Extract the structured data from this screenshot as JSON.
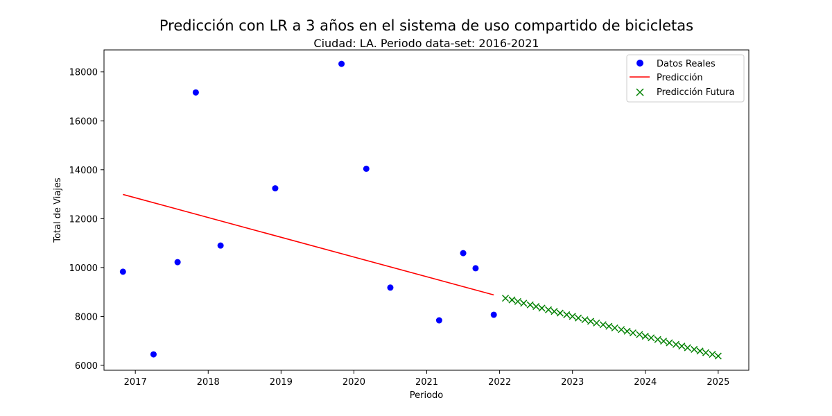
{
  "chart_data": {
    "type": "scatter",
    "title": "Predicción con LR a 3 años en el sistema de uso compartido de bicicletas",
    "subtitle": "Ciudad: LA. Periodo data-set: 2016-2021",
    "xlabel": "Periodo",
    "ylabel": "Total de Viajes",
    "xlim": [
      2016.57,
      2025.42
    ],
    "ylim": [
      5800,
      18900
    ],
    "x_ticks": [
      2017,
      2018,
      2019,
      2020,
      2021,
      2022,
      2023,
      2024,
      2025
    ],
    "y_ticks": [
      6000,
      8000,
      10000,
      12000,
      14000,
      16000,
      18000
    ],
    "grid": false,
    "legend_position": "top-right",
    "series": [
      {
        "name": "Datos Reales",
        "kind": "scatter",
        "marker": "circle",
        "color": "#0000ff",
        "x": [
          2016.83,
          2017.25,
          2017.58,
          2017.83,
          2018.17,
          2018.92,
          2019.83,
          2020.17,
          2020.5,
          2021.17,
          2021.5,
          2021.67,
          2021.92
        ],
        "y": [
          9830,
          6450,
          10220,
          17160,
          10900,
          13240,
          18330,
          14040,
          9180,
          7840,
          10590,
          9970,
          8070
        ]
      },
      {
        "name": "Predicción",
        "kind": "line",
        "color": "#ff0000",
        "x": [
          2016.83,
          2021.92
        ],
        "y": [
          12990,
          8880
        ]
      },
      {
        "name": "Predicción Futura",
        "kind": "scatter",
        "marker": "x",
        "color": "#008000",
        "x": [
          2022.08,
          2022.17,
          2022.25,
          2022.33,
          2022.42,
          2022.5,
          2022.58,
          2022.67,
          2022.75,
          2022.83,
          2022.92,
          2023.0,
          2023.08,
          2023.17,
          2023.25,
          2023.33,
          2023.42,
          2023.5,
          2023.58,
          2023.67,
          2023.75,
          2023.83,
          2023.92,
          2024.0,
          2024.08,
          2024.17,
          2024.25,
          2024.33,
          2024.42,
          2024.5,
          2024.58,
          2024.67,
          2024.75,
          2024.83,
          2024.92,
          2025.0
        ],
        "y": [
          8745,
          8677,
          8610,
          8542,
          8475,
          8407,
          8340,
          8272,
          8205,
          8137,
          8070,
          8002,
          7935,
          7867,
          7800,
          7732,
          7665,
          7597,
          7530,
          7462,
          7395,
          7327,
          7260,
          7192,
          7125,
          7057,
          6990,
          6922,
          6855,
          6787,
          6720,
          6652,
          6585,
          6517,
          6450,
          6382
        ]
      }
    ]
  }
}
